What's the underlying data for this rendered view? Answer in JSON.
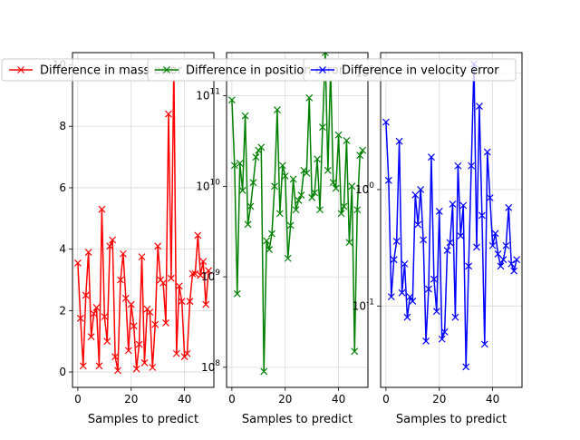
{
  "chart_data": [
    {
      "type": "line",
      "scale": "linear",
      "xlabel": "Samples to predict",
      "ylabel": "",
      "xlim": [
        -2,
        51
      ],
      "ylim": [
        -0.5,
        10.4
      ],
      "xticks": [
        0,
        20,
        40
      ],
      "xtick_labels": [
        "0",
        "20",
        "40"
      ],
      "yticks": [
        0,
        2,
        4,
        6,
        8,
        10
      ],
      "ytick_labels": [
        "0",
        "2",
        "4",
        "6",
        "8",
        "10"
      ],
      "grid": true,
      "legend": {
        "position": "top-left"
      },
      "color": "#ff0000",
      "marker": "x",
      "series": [
        {
          "name": "Difference in mass error",
          "x": [
            0,
            1,
            2,
            3,
            4,
            5,
            6,
            7,
            8,
            9,
            10,
            11,
            12,
            13,
            14,
            15,
            16,
            17,
            18,
            19,
            20,
            21,
            22,
            23,
            24,
            25,
            26,
            27,
            28,
            29,
            30,
            31,
            32,
            33,
            34,
            35,
            36,
            37,
            38,
            39,
            40,
            41,
            42,
            43,
            44,
            45,
            46,
            47,
            48,
            49
          ],
          "values": [
            3.55,
            1.75,
            0.2,
            2.5,
            3.9,
            1.15,
            1.9,
            2.1,
            0.2,
            5.3,
            1.8,
            1.0,
            4.1,
            4.3,
            0.5,
            0.05,
            3.0,
            3.85,
            2.4,
            0.7,
            2.2,
            1.5,
            0.1,
            0.9,
            3.75,
            0.3,
            2.05,
            1.95,
            0.15,
            1.55,
            4.1,
            3.0,
            2.9,
            1.6,
            8.4,
            3.05,
            10.0,
            0.6,
            2.8,
            2.3,
            0.5,
            0.6,
            2.3,
            3.2,
            3.2,
            4.45,
            3.15,
            3.6,
            2.2,
            3.3
          ]
        }
      ]
    },
    {
      "type": "line",
      "scale": "log",
      "xlabel": "Samples to predict",
      "ylabel": "",
      "xlim": [
        -2,
        51
      ],
      "ylim": [
        60000000.0,
        300000000000.0
      ],
      "xticks": [
        0,
        20,
        40
      ],
      "xtick_labels": [
        "0",
        "20",
        "40"
      ],
      "yticks": [
        100000000.0,
        1000000000.0,
        10000000000.0,
        100000000000.0
      ],
      "ytick_labels": [
        "10^8",
        "10^9",
        "10^10",
        "10^11"
      ],
      "grid": true,
      "legend": {
        "position": "top-left"
      },
      "color": "#008000",
      "marker": "x",
      "series": [
        {
          "name": "Difference in position error",
          "x": [
            0,
            1,
            2,
            3,
            4,
            5,
            6,
            7,
            8,
            9,
            10,
            11,
            12,
            13,
            14,
            15,
            16,
            17,
            18,
            19,
            20,
            21,
            22,
            23,
            24,
            25,
            26,
            27,
            28,
            29,
            30,
            31,
            32,
            33,
            34,
            35,
            36,
            37,
            38,
            39,
            40,
            41,
            42,
            43,
            44,
            45,
            46,
            47,
            48,
            49
          ],
          "values": [
            90000000000.0,
            17000000000.0,
            650000000.0,
            18000000000.0,
            9000000000.0,
            60000000000.0,
            3800000000.0,
            6000000000.0,
            11000000000.0,
            21000000000.0,
            25000000000.0,
            27000000000.0,
            90000000.0,
            2500000000.0,
            2000000000.0,
            3000000000.0,
            10000000000.0,
            70000000000.0,
            5000000000.0,
            17000000000.0,
            13000000000.0,
            1600000000.0,
            3700000000.0,
            12000000000.0,
            5500000000.0,
            7000000000.0,
            8000000000.0,
            15000000000.0,
            14000000000.0,
            95000000000.0,
            7500000000.0,
            8500000000.0,
            20000000000.0,
            5500000000.0,
            45000000000.0,
            300000000000.0,
            15000000000.0,
            200000000000.0,
            11000000000.0,
            9500000000.0,
            37000000000.0,
            5000000000.0,
            6000000000.0,
            32000000000.0,
            2400000000.0,
            10000000000.0,
            150000000.0,
            5500000000.0,
            22000000000.0,
            25000000000.0
          ]
        }
      ]
    },
    {
      "type": "line",
      "scale": "log",
      "xlabel": "Samples to predict",
      "ylabel": "",
      "xlim": [
        -2,
        51
      ],
      "ylim": [
        0.02,
        15
      ],
      "xticks": [
        0,
        20,
        40
      ],
      "xtick_labels": [
        "0",
        "20",
        "40"
      ],
      "yticks": [
        0.1,
        1,
        10
      ],
      "ytick_labels": [
        "10^-1",
        "10^0",
        "10^1"
      ],
      "grid": true,
      "legend": {
        "position": "top-left"
      },
      "color": "#0000ff",
      "marker": "x",
      "series": [
        {
          "name": "Difference in velocity error",
          "x": [
            0,
            1,
            2,
            3,
            4,
            5,
            6,
            7,
            8,
            9,
            10,
            11,
            12,
            13,
            14,
            15,
            16,
            17,
            18,
            19,
            20,
            21,
            22,
            23,
            24,
            25,
            26,
            27,
            28,
            29,
            30,
            31,
            32,
            33,
            34,
            35,
            36,
            37,
            38,
            39,
            40,
            41,
            42,
            43,
            44,
            45,
            46,
            47,
            48,
            49
          ],
          "values": [
            3.8,
            1.2,
            0.12,
            0.25,
            0.36,
            2.6,
            0.13,
            0.23,
            0.08,
            0.12,
            0.11,
            0.9,
            0.5,
            1.0,
            0.37,
            0.05,
            0.14,
            1.9,
            0.17,
            0.09,
            0.65,
            0.052,
            0.06,
            0.3,
            0.35,
            0.75,
            0.08,
            1.6,
            0.4,
            0.73,
            0.03,
            0.22,
            1.6,
            12.0,
            0.32,
            5.2,
            0.6,
            0.047,
            2.1,
            0.85,
            0.33,
            0.42,
            0.28,
            0.22,
            0.25,
            0.33,
            0.7,
            0.23,
            0.2,
            0.25
          ]
        }
      ]
    }
  ]
}
